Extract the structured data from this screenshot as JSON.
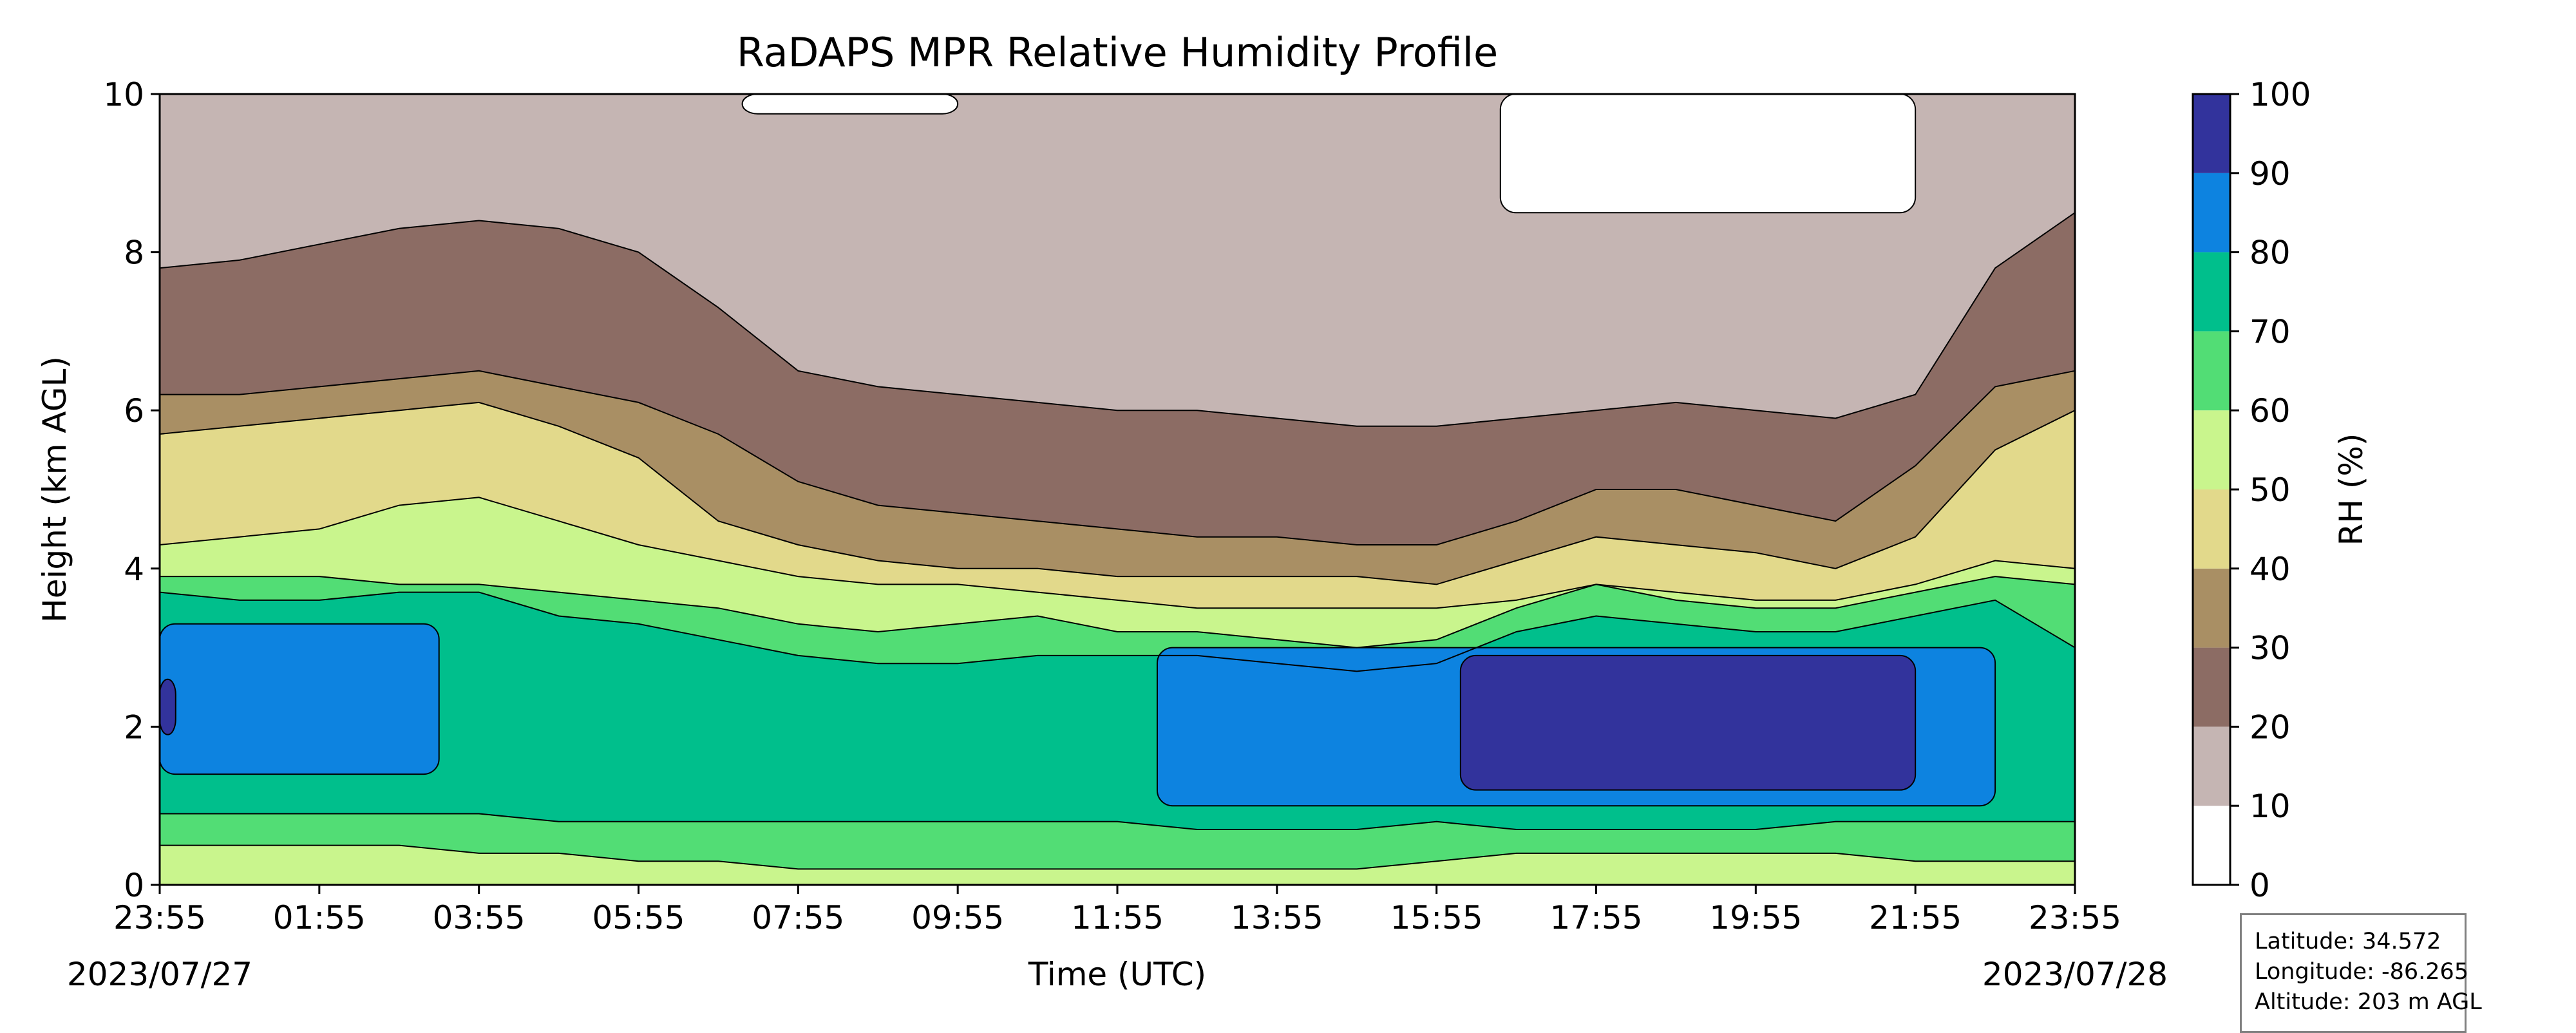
{
  "chart_data": {
    "type": "heatmap",
    "title": "RaDAPS MPR Relative Humidity Profile",
    "xlabel": "Time (UTC)",
    "ylabel": "Height (km AGL)",
    "x_tick_labels": [
      "23:55",
      "01:55",
      "03:55",
      "05:55",
      "07:55",
      "09:55",
      "11:55",
      "13:55",
      "15:55",
      "17:55",
      "19:55",
      "21:55",
      "23:55"
    ],
    "x_range_hours": [
      0,
      24
    ],
    "start_date": "2023/07/27",
    "end_date": "2023/07/28",
    "ylim": [
      0,
      10
    ],
    "y_ticks": [
      0,
      2,
      4,
      6,
      8,
      10
    ],
    "colorbar": {
      "label": "RH (%)",
      "ticks": [
        0,
        10,
        20,
        30,
        40,
        50,
        60,
        70,
        80,
        90,
        100
      ],
      "bins": [
        {
          "range": [
            0,
            10
          ],
          "color": "#ffffff"
        },
        {
          "range": [
            10,
            20
          ],
          "color": "#c5b5b3"
        },
        {
          "range": [
            20,
            30
          ],
          "color": "#8c6c64"
        },
        {
          "range": [
            30,
            40
          ],
          "color": "#a98f64"
        },
        {
          "range": [
            40,
            50
          ],
          "color": "#e2d98b"
        },
        {
          "range": [
            50,
            60
          ],
          "color": "#c9f58d"
        },
        {
          "range": [
            60,
            70
          ],
          "color": "#52dd75"
        },
        {
          "range": [
            70,
            80
          ],
          "color": "#00bf8c"
        },
        {
          "range": [
            80,
            90
          ],
          "color": "#0d83e0"
        },
        {
          "range": [
            90,
            100
          ],
          "color": "#32339c"
        }
      ]
    },
    "contour_boundaries_km": {
      "times_hours": [
        0,
        1,
        2,
        3,
        4,
        5,
        6,
        7,
        8,
        9,
        10,
        11,
        12,
        13,
        14,
        15,
        16,
        17,
        18,
        19,
        20,
        21,
        22,
        23,
        24
      ],
      "rh_20": [
        7.8,
        7.9,
        8.1,
        8.3,
        8.4,
        8.3,
        8.0,
        7.3,
        6.5,
        6.3,
        6.2,
        6.1,
        6.0,
        6.0,
        5.9,
        5.8,
        5.8,
        5.9,
        6.0,
        6.1,
        6.0,
        5.9,
        6.2,
        7.8,
        8.5
      ],
      "rh_30": [
        6.2,
        6.2,
        6.3,
        6.4,
        6.5,
        6.3,
        6.1,
        5.7,
        5.1,
        4.8,
        4.7,
        4.6,
        4.5,
        4.4,
        4.4,
        4.3,
        4.3,
        4.6,
        5.0,
        5.0,
        4.8,
        4.6,
        5.3,
        6.3,
        6.5
      ],
      "rh_40": [
        5.7,
        5.8,
        5.9,
        6.0,
        6.1,
        5.8,
        5.4,
        4.6,
        4.3,
        4.1,
        4.0,
        4.0,
        3.9,
        3.9,
        3.9,
        3.9,
        3.8,
        4.1,
        4.4,
        4.3,
        4.2,
        4.0,
        4.4,
        5.5,
        6.0
      ],
      "rh_50": [
        4.3,
        4.4,
        4.5,
        4.8,
        4.9,
        4.6,
        4.3,
        4.1,
        3.9,
        3.8,
        3.8,
        3.7,
        3.6,
        3.5,
        3.5,
        3.5,
        3.5,
        3.6,
        3.8,
        3.7,
        3.6,
        3.6,
        3.8,
        4.1,
        4.0
      ],
      "rh_60": [
        3.9,
        3.9,
        3.9,
        3.8,
        3.8,
        3.7,
        3.6,
        3.5,
        3.3,
        3.2,
        3.3,
        3.4,
        3.2,
        3.2,
        3.1,
        3.0,
        3.1,
        3.5,
        3.8,
        3.6,
        3.5,
        3.5,
        3.7,
        3.9,
        3.8
      ],
      "rh_70": [
        3.7,
        3.6,
        3.6,
        3.7,
        3.7,
        3.4,
        3.3,
        3.1,
        2.9,
        2.8,
        2.8,
        2.9,
        2.9,
        2.9,
        2.8,
        2.7,
        2.8,
        3.2,
        3.4,
        3.3,
        3.2,
        3.2,
        3.4,
        3.6,
        3.0
      ],
      "rh_70_lower": [
        0.9,
        0.9,
        0.9,
        0.9,
        0.9,
        0.8,
        0.8,
        0.8,
        0.8,
        0.8,
        0.8,
        0.8,
        0.8,
        0.7,
        0.7,
        0.7,
        0.8,
        0.7,
        0.7,
        0.7,
        0.7,
        0.8,
        0.8,
        0.8,
        0.8
      ],
      "rh_60_lower": [
        0.5,
        0.5,
        0.5,
        0.5,
        0.4,
        0.4,
        0.3,
        0.3,
        0.2,
        0.2,
        0.2,
        0.2,
        0.2,
        0.2,
        0.2,
        0.2,
        0.3,
        0.4,
        0.4,
        0.4,
        0.4,
        0.4,
        0.3,
        0.3,
        0.3
      ]
    },
    "rh_above_80_region": [
      {
        "t_hours": [
          0.0,
          3.5
        ],
        "z_km": [
          1.4,
          3.3
        ]
      },
      {
        "t_hours": [
          12.5,
          23.0
        ],
        "z_km": [
          1.0,
          3.0
        ]
      }
    ],
    "rh_above_90_region": [
      {
        "t_hours": [
          0.0,
          0.2
        ],
        "z_km": [
          1.9,
          2.6
        ]
      },
      {
        "t_hours": [
          16.3,
          22.0
        ],
        "z_km": [
          1.2,
          2.9
        ]
      }
    ],
    "rh_below_10_region": [
      {
        "t_hours": [
          7.3,
          10.0
        ],
        "z_km": [
          9.75,
          10.0
        ]
      },
      {
        "t_hours": [
          16.8,
          22.0
        ],
        "z_km": [
          8.5,
          10.0
        ]
      }
    ]
  },
  "info": {
    "latitude": "Latitude: 34.572",
    "longitude": "Longitude: -86.265",
    "altitude": "Altitude: 203 m AGL"
  }
}
